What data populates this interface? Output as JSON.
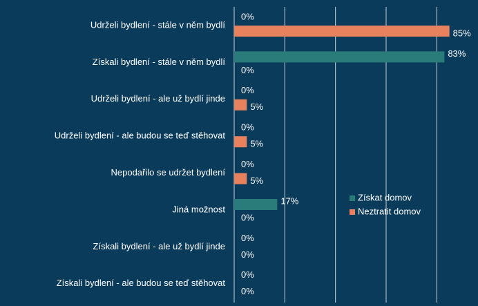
{
  "chart_data": {
    "type": "bar",
    "orientation": "horizontal",
    "categories": [
      "Udrželi bydlení - stále v něm bydlí",
      "Získali bydlení - stále v něm bydlí",
      "Udrželi bydlení - ale už bydlí jinde",
      "Udrželi bydlení - ale budou se teď stěhovat",
      "Nepodařilo se udržet bydlení",
      "Jiná možnost",
      "Získali bydlení - ale už bydlí jinde",
      "Získali bydlení - ale budou se teď stěhovat"
    ],
    "series": [
      {
        "name": "Získat domov",
        "color": "#2a7c7a",
        "values": [
          0,
          83,
          0,
          0,
          0,
          17,
          0,
          0
        ],
        "value_labels": [
          "0%",
          "83%",
          "0%",
          "0%",
          "0%",
          "17%",
          "0%",
          "0%"
        ]
      },
      {
        "name": "Neztratit domov",
        "color": "#e8825e",
        "values": [
          85,
          0,
          5,
          5,
          5,
          0,
          0,
          0
        ],
        "value_labels": [
          "85%",
          "0%",
          "5%",
          "5%",
          "5%",
          "0%",
          "0%",
          "0%"
        ]
      }
    ],
    "xlim": [
      0,
      90
    ],
    "xticks": [
      0,
      20,
      40,
      60,
      80
    ],
    "grid": true,
    "legend": "right"
  }
}
